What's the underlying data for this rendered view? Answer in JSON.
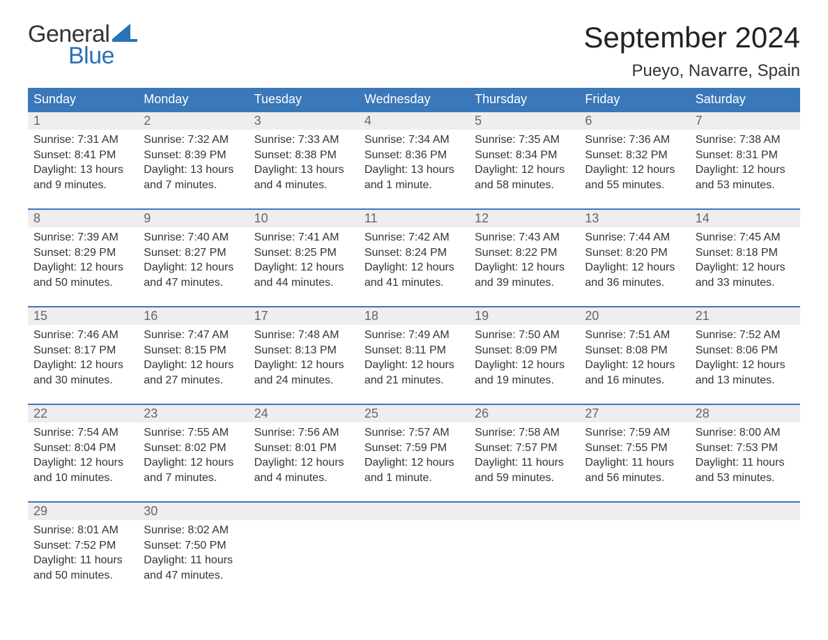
{
  "logo": {
    "line1": "General",
    "line2": "Blue",
    "brand_color": "#2a71b8"
  },
  "title": "September 2024",
  "location": "Pueyo, Navarre, Spain",
  "colors": {
    "header_bg": "#3a78b9",
    "header_text": "#ffffff",
    "week_border": "#3a78b9",
    "daynum_bg": "#eeeeee",
    "daynum_text": "#666666",
    "body_text": "#333333",
    "background": "#ffffff"
  },
  "fonts": {
    "title_size_pt": 32,
    "location_size_pt": 18,
    "header_size_pt": 14,
    "daynum_size_pt": 14,
    "body_size_pt": 12
  },
  "day_headers": [
    "Sunday",
    "Monday",
    "Tuesday",
    "Wednesday",
    "Thursday",
    "Friday",
    "Saturday"
  ],
  "weeks": [
    [
      {
        "n": "1",
        "sunrise": "Sunrise: 7:31 AM",
        "sunset": "Sunset: 8:41 PM",
        "d1": "Daylight: 13 hours",
        "d2": "and 9 minutes."
      },
      {
        "n": "2",
        "sunrise": "Sunrise: 7:32 AM",
        "sunset": "Sunset: 8:39 PM",
        "d1": "Daylight: 13 hours",
        "d2": "and 7 minutes."
      },
      {
        "n": "3",
        "sunrise": "Sunrise: 7:33 AM",
        "sunset": "Sunset: 8:38 PM",
        "d1": "Daylight: 13 hours",
        "d2": "and 4 minutes."
      },
      {
        "n": "4",
        "sunrise": "Sunrise: 7:34 AM",
        "sunset": "Sunset: 8:36 PM",
        "d1": "Daylight: 13 hours",
        "d2": "and 1 minute."
      },
      {
        "n": "5",
        "sunrise": "Sunrise: 7:35 AM",
        "sunset": "Sunset: 8:34 PM",
        "d1": "Daylight: 12 hours",
        "d2": "and 58 minutes."
      },
      {
        "n": "6",
        "sunrise": "Sunrise: 7:36 AM",
        "sunset": "Sunset: 8:32 PM",
        "d1": "Daylight: 12 hours",
        "d2": "and 55 minutes."
      },
      {
        "n": "7",
        "sunrise": "Sunrise: 7:38 AM",
        "sunset": "Sunset: 8:31 PM",
        "d1": "Daylight: 12 hours",
        "d2": "and 53 minutes."
      }
    ],
    [
      {
        "n": "8",
        "sunrise": "Sunrise: 7:39 AM",
        "sunset": "Sunset: 8:29 PM",
        "d1": "Daylight: 12 hours",
        "d2": "and 50 minutes."
      },
      {
        "n": "9",
        "sunrise": "Sunrise: 7:40 AM",
        "sunset": "Sunset: 8:27 PM",
        "d1": "Daylight: 12 hours",
        "d2": "and 47 minutes."
      },
      {
        "n": "10",
        "sunrise": "Sunrise: 7:41 AM",
        "sunset": "Sunset: 8:25 PM",
        "d1": "Daylight: 12 hours",
        "d2": "and 44 minutes."
      },
      {
        "n": "11",
        "sunrise": "Sunrise: 7:42 AM",
        "sunset": "Sunset: 8:24 PM",
        "d1": "Daylight: 12 hours",
        "d2": "and 41 minutes."
      },
      {
        "n": "12",
        "sunrise": "Sunrise: 7:43 AM",
        "sunset": "Sunset: 8:22 PM",
        "d1": "Daylight: 12 hours",
        "d2": "and 39 minutes."
      },
      {
        "n": "13",
        "sunrise": "Sunrise: 7:44 AM",
        "sunset": "Sunset: 8:20 PM",
        "d1": "Daylight: 12 hours",
        "d2": "and 36 minutes."
      },
      {
        "n": "14",
        "sunrise": "Sunrise: 7:45 AM",
        "sunset": "Sunset: 8:18 PM",
        "d1": "Daylight: 12 hours",
        "d2": "and 33 minutes."
      }
    ],
    [
      {
        "n": "15",
        "sunrise": "Sunrise: 7:46 AM",
        "sunset": "Sunset: 8:17 PM",
        "d1": "Daylight: 12 hours",
        "d2": "and 30 minutes."
      },
      {
        "n": "16",
        "sunrise": "Sunrise: 7:47 AM",
        "sunset": "Sunset: 8:15 PM",
        "d1": "Daylight: 12 hours",
        "d2": "and 27 minutes."
      },
      {
        "n": "17",
        "sunrise": "Sunrise: 7:48 AM",
        "sunset": "Sunset: 8:13 PM",
        "d1": "Daylight: 12 hours",
        "d2": "and 24 minutes."
      },
      {
        "n": "18",
        "sunrise": "Sunrise: 7:49 AM",
        "sunset": "Sunset: 8:11 PM",
        "d1": "Daylight: 12 hours",
        "d2": "and 21 minutes."
      },
      {
        "n": "19",
        "sunrise": "Sunrise: 7:50 AM",
        "sunset": "Sunset: 8:09 PM",
        "d1": "Daylight: 12 hours",
        "d2": "and 19 minutes."
      },
      {
        "n": "20",
        "sunrise": "Sunrise: 7:51 AM",
        "sunset": "Sunset: 8:08 PM",
        "d1": "Daylight: 12 hours",
        "d2": "and 16 minutes."
      },
      {
        "n": "21",
        "sunrise": "Sunrise: 7:52 AM",
        "sunset": "Sunset: 8:06 PM",
        "d1": "Daylight: 12 hours",
        "d2": "and 13 minutes."
      }
    ],
    [
      {
        "n": "22",
        "sunrise": "Sunrise: 7:54 AM",
        "sunset": "Sunset: 8:04 PM",
        "d1": "Daylight: 12 hours",
        "d2": "and 10 minutes."
      },
      {
        "n": "23",
        "sunrise": "Sunrise: 7:55 AM",
        "sunset": "Sunset: 8:02 PM",
        "d1": "Daylight: 12 hours",
        "d2": "and 7 minutes."
      },
      {
        "n": "24",
        "sunrise": "Sunrise: 7:56 AM",
        "sunset": "Sunset: 8:01 PM",
        "d1": "Daylight: 12 hours",
        "d2": "and 4 minutes."
      },
      {
        "n": "25",
        "sunrise": "Sunrise: 7:57 AM",
        "sunset": "Sunset: 7:59 PM",
        "d1": "Daylight: 12 hours",
        "d2": "and 1 minute."
      },
      {
        "n": "26",
        "sunrise": "Sunrise: 7:58 AM",
        "sunset": "Sunset: 7:57 PM",
        "d1": "Daylight: 11 hours",
        "d2": "and 59 minutes."
      },
      {
        "n": "27",
        "sunrise": "Sunrise: 7:59 AM",
        "sunset": "Sunset: 7:55 PM",
        "d1": "Daylight: 11 hours",
        "d2": "and 56 minutes."
      },
      {
        "n": "28",
        "sunrise": "Sunrise: 8:00 AM",
        "sunset": "Sunset: 7:53 PM",
        "d1": "Daylight: 11 hours",
        "d2": "and 53 minutes."
      }
    ],
    [
      {
        "n": "29",
        "sunrise": "Sunrise: 8:01 AM",
        "sunset": "Sunset: 7:52 PM",
        "d1": "Daylight: 11 hours",
        "d2": "and 50 minutes."
      },
      {
        "n": "30",
        "sunrise": "Sunrise: 8:02 AM",
        "sunset": "Sunset: 7:50 PM",
        "d1": "Daylight: 11 hours",
        "d2": "and 47 minutes."
      },
      null,
      null,
      null,
      null,
      null
    ]
  ]
}
